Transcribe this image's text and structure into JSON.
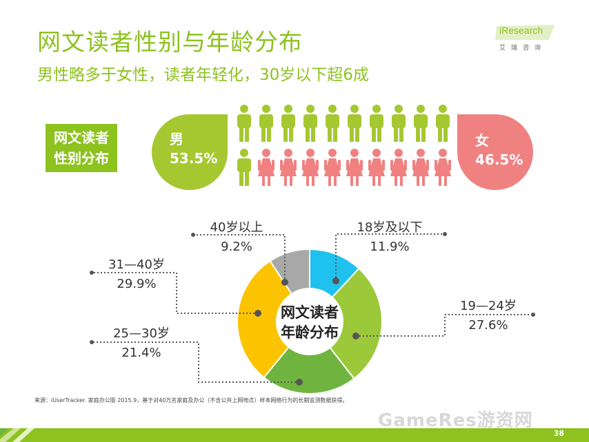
{
  "title": "网文读者性别与年龄分布",
  "subtitle": "男性略多于女性，读者年轻化，30岁以下超6成",
  "logo": {
    "brand": "iResearch",
    "chinese": "艾瑞咨询"
  },
  "gender_box": {
    "line1": "网文读者",
    "line2": "性别分布"
  },
  "male": {
    "label": "男",
    "value": "53.5%"
  },
  "female": {
    "label": "女",
    "value": "46.5%"
  },
  "donut_center": {
    "line1": "网文读者",
    "line2": "年龄分布"
  },
  "age_labels": [
    {
      "name": "40岁以上",
      "value": "9.2%"
    },
    {
      "name": "18岁及以下",
      "value": "11.9%"
    },
    {
      "name": "31—40岁",
      "value": "29.9%"
    },
    {
      "name": "19—24岁",
      "value": "27.6%"
    },
    {
      "name": "25—30岁",
      "value": "21.4%"
    }
  ],
  "source": "来源：iUserTracker. 家庭办公版 2015.9，基于对40万名家庭及办公（不含公共上网地点）样本网络行为的长期监测数据获得。",
  "page_number": "38",
  "watermark": "GameRes游资网",
  "colors": {
    "green": "#8dc21f",
    "male": "#a5c831",
    "female": "#f08181",
    "age_18_below": "#1fc1ef",
    "age_19_24": "#9cc93a",
    "age_25_30": "#6fb43f",
    "age_31_40": "#fcc400",
    "age_40_above": "#a8a8a8"
  },
  "chart_data": [
    {
      "type": "pie",
      "categories": [
        "男",
        "女"
      ],
      "values": [
        53.5,
        46.5
      ],
      "icon_grid": {
        "columns": 10,
        "rows": 2,
        "male_icons": 11,
        "female_icons": 9
      }
    },
    {
      "type": "pie",
      "donut": true,
      "categories": [
        "18岁及以下",
        "19—24岁",
        "25—30岁",
        "31—40岁",
        "40岁以上"
      ],
      "values": [
        11.9,
        27.6,
        21.4,
        29.9,
        9.2
      ],
      "title": ""
    }
  ]
}
